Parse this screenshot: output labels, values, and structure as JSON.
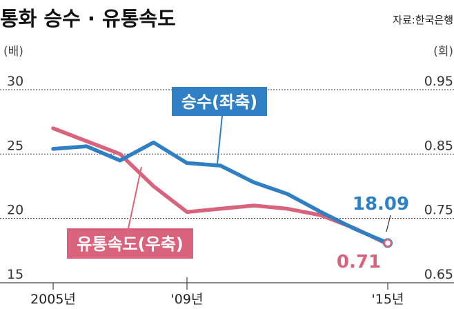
{
  "title": "통화 승수 · 유통속도",
  "source": "자료:한국은행",
  "left_unit": "(배)",
  "right_unit": "(회)",
  "colors": {
    "multiplier": "#2E7FC4",
    "velocity": "#D9637C",
    "grid": "#333333",
    "axis": "#444444"
  },
  "chart_data": {
    "type": "line",
    "title": "통화 승수 · 유통속도",
    "x": [
      2005,
      2006,
      2007,
      2008,
      2009,
      2010,
      2011,
      2012,
      2013,
      2014,
      2015
    ],
    "x_ticks": [
      "2005년",
      "'09년",
      "'15년"
    ],
    "y_left": {
      "label": "(배)",
      "ticks": [
        "30",
        "25",
        "20",
        "15"
      ],
      "lim": [
        15,
        30
      ]
    },
    "y_right": {
      "label": "(회)",
      "ticks": [
        "0.95",
        "0.85",
        "0.75",
        "0.65"
      ],
      "lim": [
        0.65,
        0.95
      ]
    },
    "grid": true,
    "series": [
      {
        "name": "승수(좌축)",
        "axis": "left",
        "values": [
          25.4,
          25.6,
          24.5,
          25.9,
          24.3,
          24.1,
          22.8,
          21.9,
          20.5,
          19.2,
          18.09
        ],
        "end_label": "18.09"
      },
      {
        "name": "유통속도(우축)",
        "axis": "right",
        "values": [
          0.89,
          0.87,
          0.85,
          0.8,
          0.76,
          0.765,
          0.77,
          0.765,
          0.755,
          0.735,
          0.71
        ],
        "end_label": "0.71"
      }
    ]
  }
}
